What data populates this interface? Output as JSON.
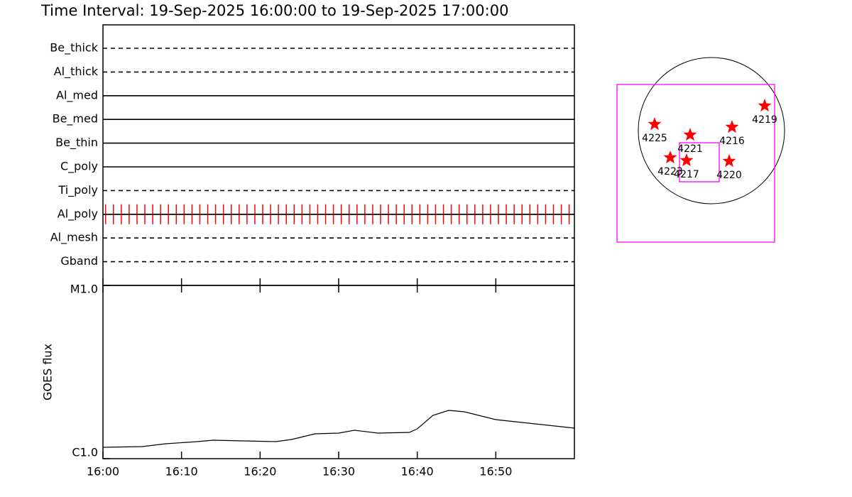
{
  "chart_data": [
    {
      "type": "timeline",
      "title": "Time Interval: 19-Sep-2025 16:00:00 to 19-Sep-2025 17:00:00",
      "xlim": [
        "16:00",
        "17:00"
      ],
      "xticks": [
        "16:00",
        "16:10",
        "16:20",
        "16:30",
        "16:40",
        "16:50"
      ],
      "categories": [
        "Be_thick",
        "Al_thick",
        "Al_med",
        "Be_med",
        "Be_thin",
        "C_poly",
        "Ti_poly",
        "Al_poly",
        "Al_mesh",
        "Gband"
      ],
      "line_styles": [
        "dashed",
        "dashed",
        "solid",
        "solid",
        "solid",
        "solid",
        "dashed",
        "solid",
        "dashed",
        "dashed"
      ],
      "exposures": {
        "filter": "Al_poly",
        "color": "#ff0000",
        "x": [
          "16:00:20",
          "16:01:20",
          "16:02:20",
          "16:03:20",
          "16:04:20",
          "16:05:20",
          "16:06:20",
          "16:07:20",
          "16:08:20",
          "16:09:20",
          "16:10:20",
          "16:11:20",
          "16:12:20",
          "16:13:20",
          "16:14:20",
          "16:15:20",
          "16:16:20",
          "16:17:20",
          "16:18:20",
          "16:19:20",
          "16:20:20",
          "16:21:20",
          "16:22:20",
          "16:23:20",
          "16:24:20",
          "16:25:20",
          "16:26:20",
          "16:27:20",
          "16:28:20",
          "16:29:20",
          "16:30:20",
          "16:31:20",
          "16:32:20",
          "16:33:20",
          "16:34:20",
          "16:35:20",
          "16:36:20",
          "16:37:20",
          "16:38:20",
          "16:39:20",
          "16:40:20",
          "16:41:20",
          "16:42:20",
          "16:43:20",
          "16:44:20",
          "16:45:20",
          "16:46:20",
          "16:47:20",
          "16:48:20",
          "16:49:20",
          "16:50:20",
          "16:51:20",
          "16:52:20",
          "16:53:20",
          "16:54:20",
          "16:55:20",
          "16:56:20",
          "16:57:20",
          "16:58:20",
          "16:59:20"
        ]
      }
    },
    {
      "type": "line",
      "ylabel": "GOES flux",
      "log_scale": true,
      "ylim": [
        1e-06,
        1e-05
      ],
      "yticks": [
        {
          "value": 1e-06,
          "label": "C1.0"
        },
        {
          "value": 1e-05,
          "label": "M1.0"
        }
      ],
      "xlim": [
        "16:00",
        "17:00"
      ],
      "xticks": [
        "16:00",
        "16:10",
        "16:20",
        "16:30",
        "16:40",
        "16:50"
      ],
      "color": "#000000",
      "x": [
        "16:00",
        "16:05",
        "16:08",
        "16:12",
        "16:14",
        "16:18",
        "16:22",
        "16:24",
        "16:27",
        "16:30",
        "16:32",
        "16:35",
        "16:39",
        "16:40",
        "16:42",
        "16:44",
        "16:46",
        "16:50",
        "16:55",
        "17:00"
      ],
      "values": [
        1.163e-06,
        1.174e-06,
        1.219e-06,
        1.254e-06,
        1.278e-06,
        1.266e-06,
        1.254e-06,
        1.29e-06,
        1.391e-06,
        1.404e-06,
        1.458e-06,
        1.404e-06,
        1.418e-06,
        1.486e-06,
        1.778e-06,
        1.9e-06,
        1.864e-06,
        1.681e-06,
        1.588e-06,
        1.501e-06
      ]
    },
    {
      "type": "map",
      "regions": [
        "4225",
        "4221",
        "4216",
        "4219",
        "4223",
        "4217",
        "4220"
      ],
      "color": "#ff0000",
      "box_color": "#ff00ff"
    }
  ]
}
